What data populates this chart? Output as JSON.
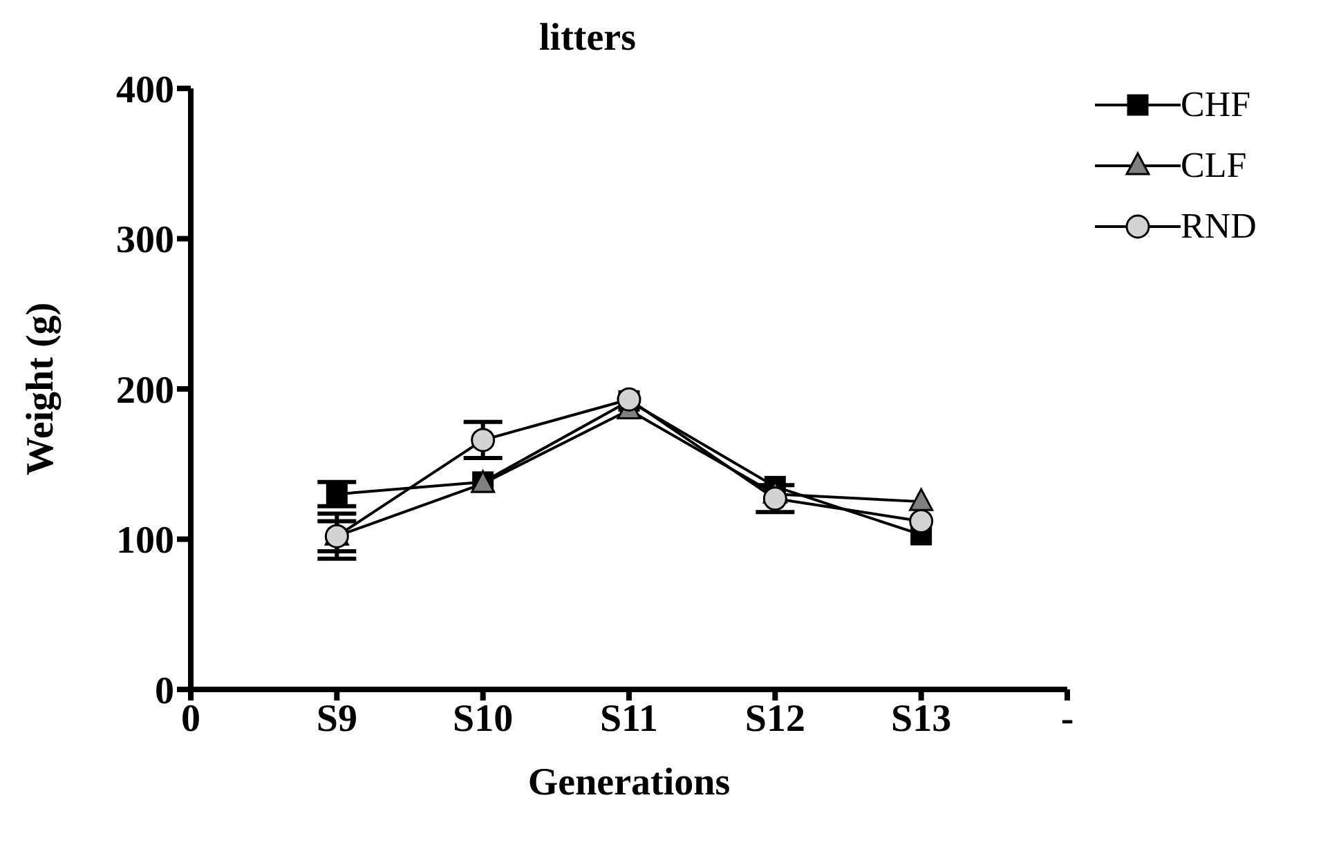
{
  "chart_data": {
    "type": "line",
    "title": "litters",
    "xlabel": "Generations",
    "ylabel": "Weight (g)",
    "categories": [
      "0",
      "S9",
      "S10",
      "S11",
      "S12",
      "S13",
      "-"
    ],
    "ylim": [
      0,
      400
    ],
    "yticks": [
      0,
      100,
      200,
      300,
      400
    ],
    "grid": false,
    "legend": "top right",
    "line_style": "solid",
    "series": [
      {
        "name": "CHF",
        "color": "#000000",
        "marker": "square",
        "values": [
          null,
          130,
          138,
          192,
          135,
          103,
          null
        ],
        "errors": [
          null,
          8,
          null,
          null,
          null,
          null,
          null
        ]
      },
      {
        "name": "CLF",
        "color": "#808080",
        "marker": "triangle",
        "values": [
          null,
          102,
          137,
          186,
          130,
          125,
          null
        ],
        "errors": [
          null,
          10,
          null,
          null,
          null,
          null,
          null
        ]
      },
      {
        "name": "RND",
        "color": "#d3d3d3",
        "marker": "circle",
        "values": [
          null,
          102,
          166,
          193,
          127,
          112,
          null
        ],
        "errors": [
          null,
          15,
          12,
          null,
          9,
          null,
          null
        ]
      }
    ]
  }
}
